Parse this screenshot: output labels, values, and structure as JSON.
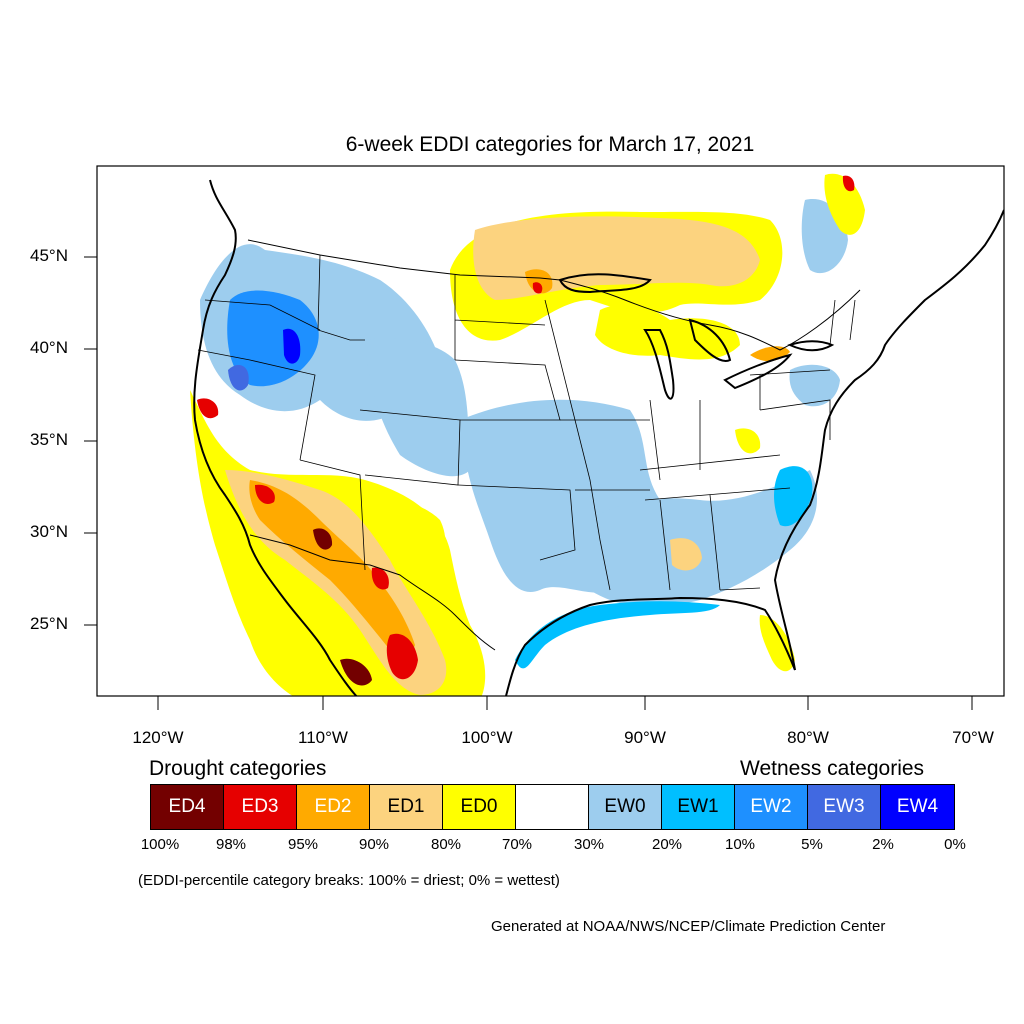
{
  "title": "6-week EDDI categories for March 17, 2021",
  "latitude_labels": [
    "45°N",
    "40°N",
    "35°N",
    "30°N",
    "25°N"
  ],
  "longitude_labels": [
    "120°W",
    "110°W",
    "100°W",
    "90°W",
    "80°W",
    "70°W"
  ],
  "drought_heading": "Drought categories",
  "wetness_heading": "Wetness categories",
  "categories": [
    {
      "label": "ED4",
      "color": "#730000",
      "text_color": "#ffffff"
    },
    {
      "label": "ED3",
      "color": "#e60000",
      "text_color": "#ffffff"
    },
    {
      "label": "ED2",
      "color": "#ffaa00",
      "text_color": "#ffffff"
    },
    {
      "label": "ED1",
      "color": "#fcd37f",
      "text_color": "#000000"
    },
    {
      "label": "ED0",
      "color": "#ffff00",
      "text_color": "#000000"
    },
    {
      "label": "",
      "color": "#ffffff",
      "text_color": "#000000"
    },
    {
      "label": "EW0",
      "color": "#9dcdee",
      "text_color": "#000000"
    },
    {
      "label": "EW1",
      "color": "#00bfff",
      "text_color": "#000000"
    },
    {
      "label": "EW2",
      "color": "#1e90ff",
      "text_color": "#ffffff"
    },
    {
      "label": "EW3",
      "color": "#4169e1",
      "text_color": "#ffffff"
    },
    {
      "label": "EW4",
      "color": "#0000ff",
      "text_color": "#ffffff"
    }
  ],
  "percentile_breaks": [
    "100%",
    "98%",
    "95%",
    "90%",
    "80%",
    "70%",
    "30%",
    "20%",
    "10%",
    "5%",
    "2%",
    "0%"
  ],
  "note": "(EDDI-percentile category breaks: 100% = driest; 0% = wettest)",
  "credit": "Generated at NOAA/NWS/NCEP/Climate Prediction Center"
}
